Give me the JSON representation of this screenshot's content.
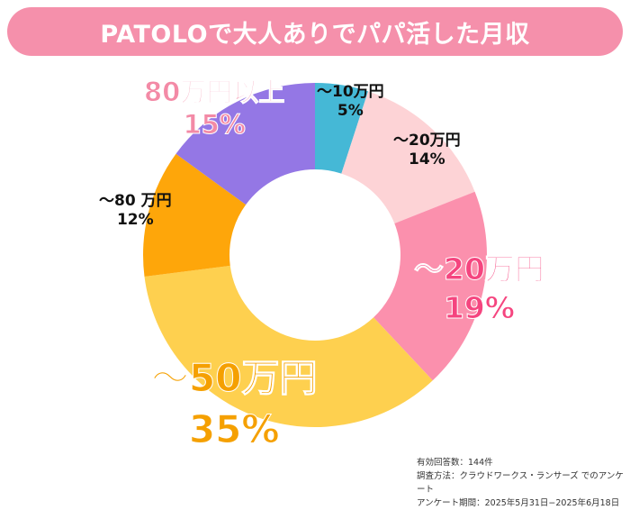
{
  "title": "PATOLOで大人ありでパパ活した月収",
  "chart_data": {
    "type": "pie",
    "donut": true,
    "title": "PATOLOで大人ありでパパ活した月収",
    "categories": [
      "〜10万円",
      "〜20万円",
      "〜20万円",
      "〜50万円",
      "〜80 万円",
      "80万円以上"
    ],
    "values": [
      5,
      14,
      19,
      35,
      12,
      15
    ],
    "value_labels": [
      "5%",
      "14%",
      "19%",
      "35%",
      "12%",
      "15%"
    ],
    "colors": [
      "#45b8d6",
      "#fdd3d6",
      "#fb90ad",
      "#fed04f",
      "#fea60a",
      "#9477e5"
    ],
    "label_colors": [
      "#111111",
      "#111111",
      "#f5457f",
      "#f5a000",
      "#111111",
      "#f38aa6"
    ]
  },
  "notes": [
    "有効回答数：144件",
    "調査方法：クラウドワークス・ランサーズ でのアンケート",
    "アンケート期間：2025年5月31日−2025年6月18日"
  ]
}
